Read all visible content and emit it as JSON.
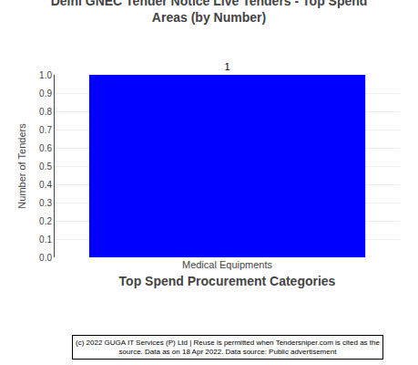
{
  "chart_data": {
    "type": "bar",
    "title": "Delhi GNEC Tender Notice Live Tenders - Top Spend\nAreas (by Number)",
    "categories": [
      "Medical Equipments"
    ],
    "values": [
      1
    ],
    "color": "#0000ff",
    "ylabel": "Number of Tenders",
    "xlabel": "Top Spend Procurement Categories",
    "ylim": [
      0.0,
      1.0
    ],
    "yticks": [
      {
        "value": 0,
        "label": "0.0"
      },
      0.1,
      0.2,
      0.3,
      0.4,
      0.5,
      0.6,
      0.7,
      0.8,
      0.9,
      {
        "value": 1,
        "label": "1.0"
      }
    ],
    "data_labels": true,
    "grid": true,
    "annotations": [
      "(c) 2022 GUGA IT Services (P) Ltd | Reuse is permitted when Tendersniper.com is cited as the\nsource. Data as on 18 Apr 2022. Data source: Public advertisement"
    ]
  }
}
